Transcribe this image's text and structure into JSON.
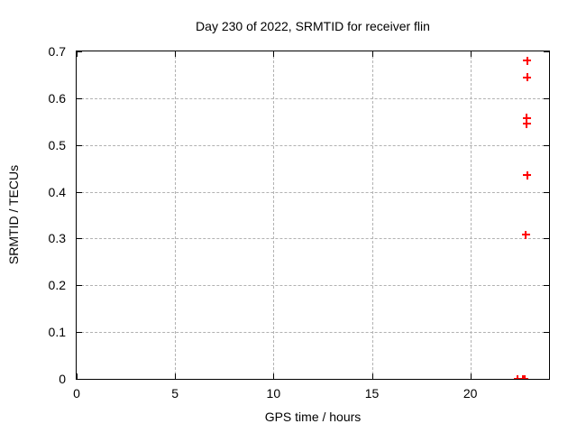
{
  "chart_data": {
    "type": "scatter",
    "title": "Day 230 of 2022, SRMTID for receiver flin",
    "xlabel": "GPS time / hours",
    "ylabel": "SRMTID / TECUs",
    "xlim": [
      0,
      24
    ],
    "ylim": [
      0,
      0.7
    ],
    "xticks": [
      0,
      5,
      10,
      15,
      20
    ],
    "yticks": [
      0,
      0.1,
      0.2,
      0.3,
      0.4,
      0.5,
      0.6,
      0.7
    ],
    "grid": true,
    "legend_position": "none",
    "marker": "plus",
    "marker_color": "#ff0000",
    "grid_color": "#b2b2b2",
    "border_color": "#000000",
    "background_color": "#ffffff",
    "series": [
      {
        "name": "SRMTID",
        "points": [
          {
            "x": 22.4,
            "y": 0.0
          },
          {
            "x": 22.67,
            "y": 0.0
          },
          {
            "x": 22.76,
            "y": 0.0
          },
          {
            "x": 22.83,
            "y": 0.308
          },
          {
            "x": 22.88,
            "y": 0.435
          },
          {
            "x": 22.86,
            "y": 0.545
          },
          {
            "x": 22.86,
            "y": 0.558
          },
          {
            "x": 22.88,
            "y": 0.645
          },
          {
            "x": 22.88,
            "y": 0.68
          }
        ]
      }
    ]
  }
}
